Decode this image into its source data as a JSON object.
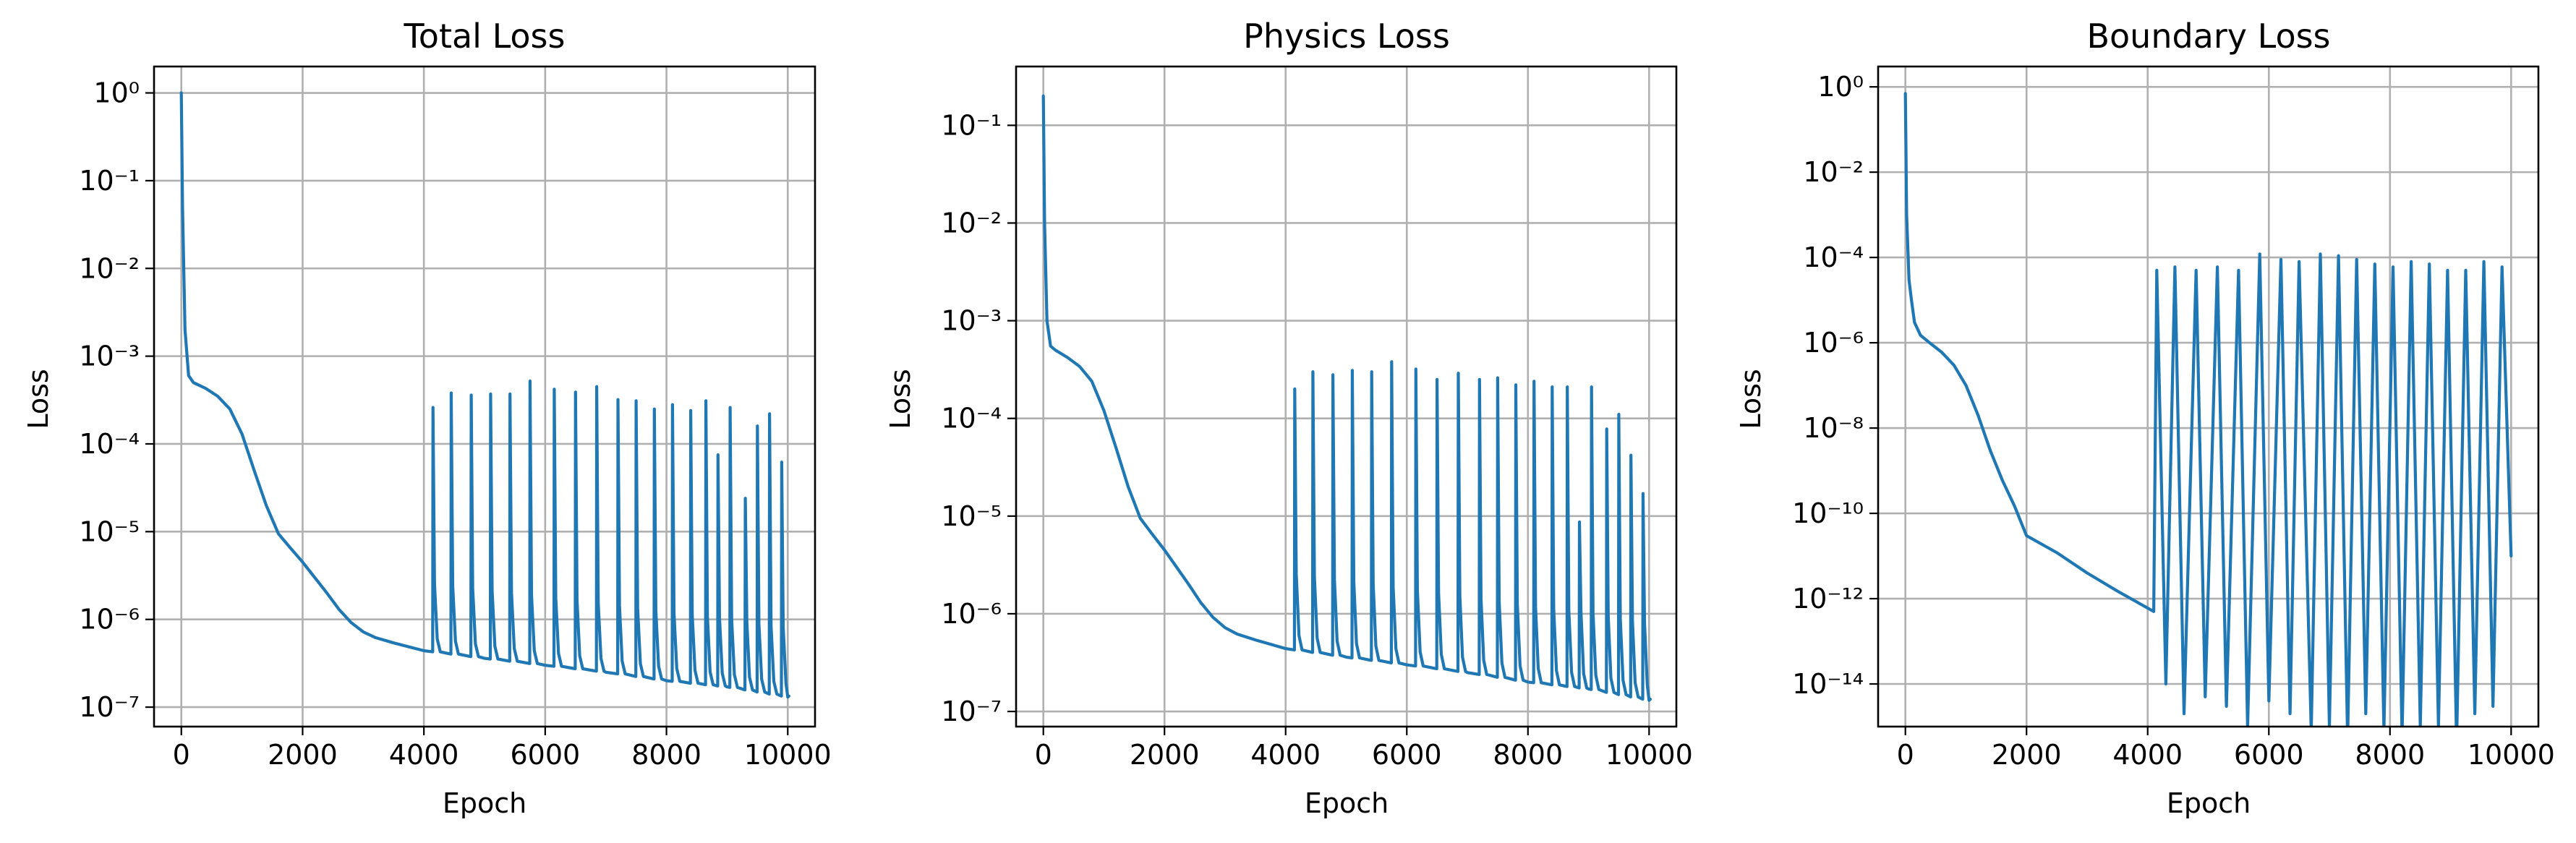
{
  "colors": {
    "series": "#1f77b4",
    "grid": "#b0b0b0",
    "axes": "#000000"
  },
  "chart_data": [
    {
      "type": "line",
      "title": "Total Loss",
      "xlabel": "Epoch",
      "ylabel": "Loss",
      "xlim": [
        -450,
        10450
      ],
      "xticks": [
        0,
        2000,
        4000,
        6000,
        8000,
        10000
      ],
      "yscale": "log",
      "ylim": [
        6e-08,
        2
      ],
      "yticks_exp": [
        0,
        -1,
        -2,
        -3,
        -4,
        -5,
        -6,
        -7
      ],
      "grid": true,
      "series": [
        {
          "baseline": [
            [
              0,
              1.0
            ],
            [
              20,
              0.05
            ],
            [
              60,
              0.002
            ],
            [
              120,
              0.0006
            ],
            [
              200,
              0.0005
            ],
            [
              400,
              0.00043
            ],
            [
              600,
              0.00035
            ],
            [
              800,
              0.00025
            ],
            [
              1000,
              0.00013
            ],
            [
              1200,
              5e-05
            ],
            [
              1400,
              2e-05
            ],
            [
              1600,
              9.5e-06
            ],
            [
              1800,
              6.5e-06
            ],
            [
              2000,
              4.5e-06
            ],
            [
              2200,
              3e-06
            ],
            [
              2400,
              2e-06
            ],
            [
              2600,
              1.3e-06
            ],
            [
              2800,
              9.2e-07
            ],
            [
              3000,
              7.2e-07
            ],
            [
              3200,
              6.2e-07
            ],
            [
              3500,
              5.4e-07
            ],
            [
              4000,
              4.4e-07
            ],
            [
              5000,
              3.6e-07
            ],
            [
              6000,
              3e-07
            ],
            [
              7000,
              2.5e-07
            ],
            [
              8000,
              2e-07
            ],
            [
              9000,
              1.7e-07
            ],
            [
              10000,
              1.3e-07
            ]
          ],
          "spikes": [
            [
              4150,
              0.00026
            ],
            [
              4450,
              0.00038
            ],
            [
              4780,
              0.00036
            ],
            [
              5100,
              0.00037
            ],
            [
              5420,
              0.00037
            ],
            [
              5750,
              0.00052
            ],
            [
              6150,
              0.00042
            ],
            [
              6500,
              0.00039
            ],
            [
              6850,
              0.00045
            ],
            [
              7200,
              0.00032
            ],
            [
              7500,
              0.00031
            ],
            [
              7800,
              0.00025
            ],
            [
              8100,
              0.00028
            ],
            [
              8400,
              0.00024
            ],
            [
              8650,
              0.00031
            ],
            [
              8850,
              7.5e-05
            ],
            [
              9050,
              0.00026
            ],
            [
              9300,
              2.4e-05
            ],
            [
              9500,
              0.00016
            ],
            [
              9700,
              0.00022
            ],
            [
              9900,
              6.2e-05
            ]
          ]
        }
      ]
    },
    {
      "type": "line",
      "title": "Physics Loss",
      "xlabel": "Epoch",
      "ylabel": "Loss",
      "xlim": [
        -450,
        10450
      ],
      "xticks": [
        0,
        2000,
        4000,
        6000,
        8000,
        10000
      ],
      "yscale": "log",
      "ylim": [
        7e-08,
        0.4
      ],
      "yticks_exp": [
        -1,
        -2,
        -3,
        -4,
        -5,
        -6,
        -7
      ],
      "grid": true,
      "series": [
        {
          "baseline": [
            [
              0,
              0.2
            ],
            [
              20,
              0.01
            ],
            [
              60,
              0.001
            ],
            [
              120,
              0.00055
            ],
            [
              200,
              0.0005
            ],
            [
              400,
              0.00042
            ],
            [
              600,
              0.00034
            ],
            [
              800,
              0.00024
            ],
            [
              1000,
              0.00012
            ],
            [
              1200,
              5e-05
            ],
            [
              1400,
              2e-05
            ],
            [
              1600,
              9.5e-06
            ],
            [
              1800,
              6.5e-06
            ],
            [
              2000,
              4.5e-06
            ],
            [
              2200,
              3e-06
            ],
            [
              2400,
              2e-06
            ],
            [
              2600,
              1.3e-06
            ],
            [
              2800,
              9.2e-07
            ],
            [
              3000,
              7.2e-07
            ],
            [
              3200,
              6.2e-07
            ],
            [
              3500,
              5.4e-07
            ],
            [
              4000,
              4.4e-07
            ],
            [
              5000,
              3.6e-07
            ],
            [
              6000,
              3e-07
            ],
            [
              7000,
              2.5e-07
            ],
            [
              8000,
              2e-07
            ],
            [
              9000,
              1.7e-07
            ],
            [
              10000,
              1.3e-07
            ]
          ],
          "spikes": [
            [
              4150,
              0.0002
            ],
            [
              4450,
              0.0003
            ],
            [
              4780,
              0.00028
            ],
            [
              5100,
              0.00031
            ],
            [
              5420,
              0.0003
            ],
            [
              5750,
              0.00038
            ],
            [
              6150,
              0.00032
            ],
            [
              6500,
              0.00025
            ],
            [
              6850,
              0.00029
            ],
            [
              7200,
              0.00025
            ],
            [
              7500,
              0.00026
            ],
            [
              7800,
              0.00022
            ],
            [
              8100,
              0.00024
            ],
            [
              8400,
              0.00021
            ],
            [
              8650,
              0.00021
            ],
            [
              8850,
              8.7e-06
            ],
            [
              9050,
              0.00021
            ],
            [
              9300,
              7.8e-05
            ],
            [
              9500,
              0.00011
            ],
            [
              9700,
              4.2e-05
            ],
            [
              9900,
              1.7e-05
            ]
          ]
        }
      ]
    },
    {
      "type": "line",
      "title": "Boundary Loss",
      "xlabel": "Epoch",
      "ylabel": "Loss",
      "xlim": [
        -450,
        10450
      ],
      "xticks": [
        0,
        2000,
        4000,
        6000,
        8000,
        10000
      ],
      "yscale": "log",
      "ylim": [
        1e-15,
        3
      ],
      "yticks_exp": [
        0,
        -2,
        -4,
        -6,
        -8,
        -10,
        -12,
        -14
      ],
      "grid": true,
      "series": [
        {
          "baseline": [
            [
              0,
              0.7
            ],
            [
              20,
              0.001
            ],
            [
              60,
              3e-05
            ],
            [
              100,
              1e-05
            ],
            [
              150,
              3e-06
            ],
            [
              250,
              1.5e-06
            ],
            [
              400,
              1e-06
            ],
            [
              600,
              6e-07
            ],
            [
              800,
              3e-07
            ],
            [
              1000,
              1e-07
            ],
            [
              1200,
              2e-08
            ],
            [
              1400,
              3e-09
            ],
            [
              1600,
              6e-10
            ],
            [
              1800,
              1.5e-10
            ],
            [
              2000,
              3e-11
            ],
            [
              2500,
              1.2e-11
            ],
            [
              3000,
              4e-12
            ],
            [
              3500,
              1.5e-12
            ],
            [
              4000,
              6e-13
            ],
            [
              4100,
              5e-13
            ]
          ],
          "spikes": [
            [
              4150,
              5e-05
            ],
            [
              4450,
              6e-05
            ],
            [
              4800,
              5e-05
            ],
            [
              5150,
              6e-05
            ],
            [
              5500,
              5e-05
            ],
            [
              5850,
              0.00012
            ],
            [
              6200,
              9e-05
            ],
            [
              6500,
              8e-05
            ],
            [
              6850,
              0.00012
            ],
            [
              7150,
              0.00011
            ],
            [
              7450,
              9e-05
            ],
            [
              7750,
              7e-05
            ],
            [
              8050,
              6e-05
            ],
            [
              8350,
              8e-05
            ],
            [
              8650,
              7e-05
            ],
            [
              8950,
              5e-05
            ],
            [
              9250,
              5e-05
            ],
            [
              9550,
              8e-05
            ],
            [
              9850,
              6e-05
            ]
          ],
          "troughs": [
            [
              4300,
              1e-14
            ],
            [
              4600,
              2e-15
            ],
            [
              4950,
              5e-15
            ],
            [
              5300,
              3e-15
            ],
            [
              5650,
              1e-15
            ],
            [
              6000,
              4e-15
            ],
            [
              6350,
              2e-15
            ],
            [
              6700,
              8e-16
            ],
            [
              7000,
              1e-15
            ],
            [
              7300,
              5e-16
            ],
            [
              7600,
              2e-15
            ],
            [
              7900,
              8e-16
            ],
            [
              8200,
              6e-16
            ],
            [
              8500,
              1e-15
            ],
            [
              8800,
              1e-15
            ],
            [
              9100,
              4e-16
            ],
            [
              9400,
              2e-15
            ],
            [
              9700,
              3e-15
            ],
            [
              10000,
              1e-11
            ]
          ]
        }
      ]
    }
  ]
}
